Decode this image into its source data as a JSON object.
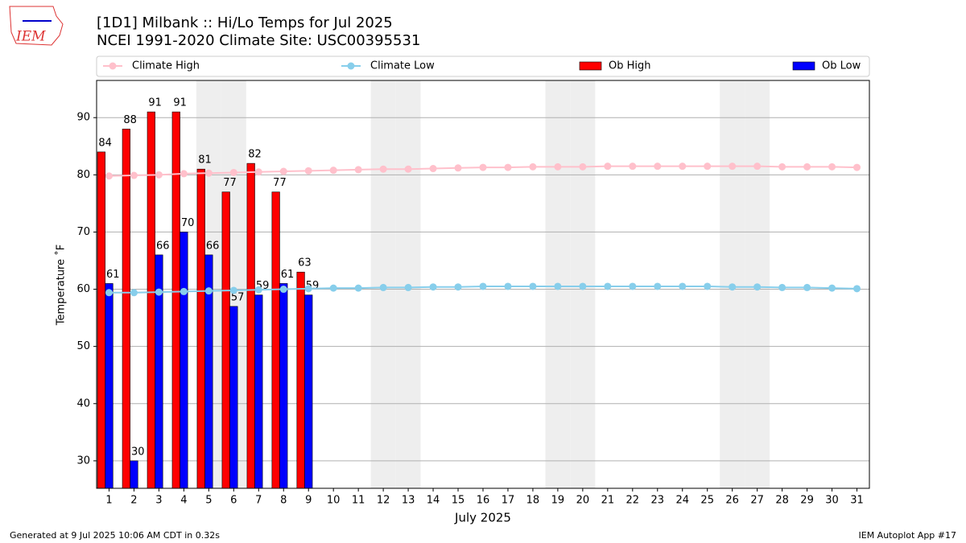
{
  "chart_data": {
    "type": "bar",
    "title": "[1D1] Milbank :: Hi/Lo Temps for Jul 2025",
    "subtitle": "NCEI 1991-2020 Climate Site: USC00395531",
    "xlabel": "July 2025",
    "ylabel": "Temperature ˚F",
    "logo_text": "IEM",
    "footer_left": "Generated at 9 Jul 2025 10:06 AM CDT in 0.32s",
    "footer_right": "IEM Autoplot App #17",
    "x": [
      1,
      2,
      3,
      4,
      5,
      6,
      7,
      8,
      9,
      10,
      11,
      12,
      13,
      14,
      15,
      16,
      17,
      18,
      19,
      20,
      21,
      22,
      23,
      24,
      25,
      26,
      27,
      28,
      29,
      30,
      31
    ],
    "xlim": [
      0.5,
      31.5
    ],
    "xticks": [
      1,
      2,
      3,
      4,
      5,
      6,
      7,
      8,
      9,
      10,
      11,
      12,
      13,
      14,
      15,
      16,
      17,
      18,
      19,
      20,
      21,
      22,
      23,
      24,
      25,
      26,
      27,
      28,
      29,
      30,
      31
    ],
    "ylim": [
      25.2,
      96.5
    ],
    "yticks": [
      30,
      40,
      50,
      60,
      70,
      80,
      90
    ],
    "grid": true,
    "shaded_days": [
      5,
      6,
      12,
      13,
      19,
      20,
      26,
      27
    ],
    "series": [
      {
        "name": "Climate High",
        "type": "line",
        "color": "#ffc0cb",
        "values": [
          79.8,
          79.9,
          80.0,
          80.2,
          80.3,
          80.4,
          80.5,
          80.6,
          80.7,
          80.8,
          80.9,
          81.0,
          81.0,
          81.1,
          81.2,
          81.3,
          81.3,
          81.4,
          81.4,
          81.4,
          81.5,
          81.5,
          81.5,
          81.5,
          81.5,
          81.5,
          81.5,
          81.4,
          81.4,
          81.4,
          81.3
        ]
      },
      {
        "name": "Climate Low",
        "type": "line",
        "color": "#87ceeb",
        "values": [
          59.4,
          59.4,
          59.5,
          59.6,
          59.7,
          59.8,
          59.9,
          60.0,
          60.1,
          60.2,
          60.2,
          60.3,
          60.3,
          60.4,
          60.4,
          60.5,
          60.5,
          60.5,
          60.5,
          60.5,
          60.5,
          60.5,
          60.5,
          60.5,
          60.5,
          60.4,
          60.4,
          60.3,
          60.3,
          60.2,
          60.1
        ]
      },
      {
        "name": "Ob High",
        "type": "bar",
        "color": "#ff0000",
        "values": [
          84,
          88,
          91,
          91,
          81,
          77,
          82,
          77,
          63,
          null,
          null,
          null,
          null,
          null,
          null,
          null,
          null,
          null,
          null,
          null,
          null,
          null,
          null,
          null,
          null,
          null,
          null,
          null,
          null,
          null,
          null
        ]
      },
      {
        "name": "Ob Low",
        "type": "bar",
        "color": "#0000ff",
        "values": [
          61,
          30,
          66,
          70,
          66,
          57,
          59,
          61,
          59,
          null,
          null,
          null,
          null,
          null,
          null,
          null,
          null,
          null,
          null,
          null,
          null,
          null,
          null,
          null,
          null,
          null,
          null,
          null,
          null,
          null,
          null
        ]
      }
    ]
  }
}
